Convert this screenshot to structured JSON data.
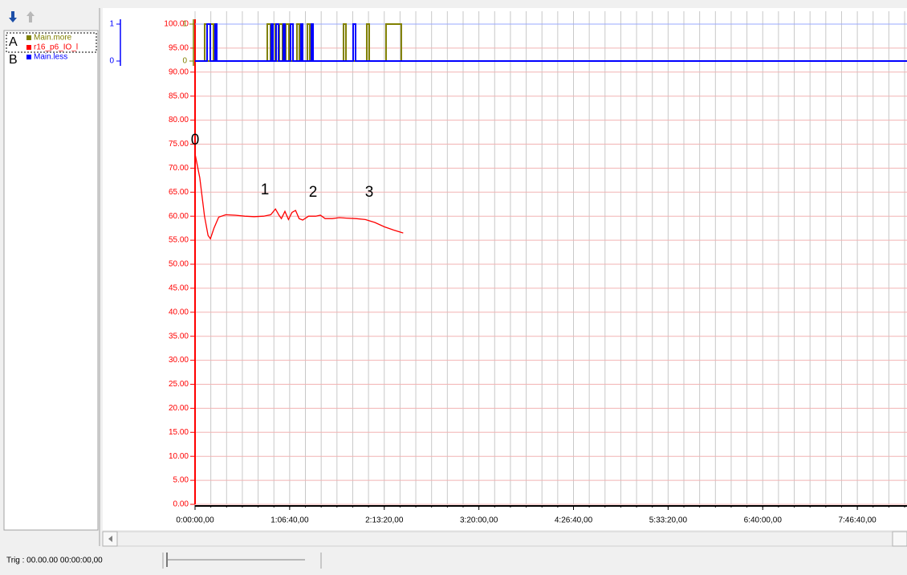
{
  "chart_data": {
    "type": "line",
    "series": [
      {
        "name": "Main.more",
        "color": "#808000",
        "axis": "y2",
        "x": [
          0,
          407,
          509,
          645,
          780,
          3054,
          3189,
          3291,
          3393,
          3563,
          3698,
          3834,
          3970,
          4309,
          4411,
          4750,
          4852,
          6277,
          6379,
          7261,
          7363,
          8075,
          8720
        ],
        "values": [
          0,
          1,
          0,
          1,
          0,
          1,
          0,
          1,
          0,
          1,
          0,
          1,
          0,
          1,
          0,
          1,
          0,
          1,
          0,
          1,
          0,
          1,
          0
        ]
      },
      {
        "name": "r16_p6_IO_l",
        "color": "#ff0000",
        "x": [
          0,
          200,
          400,
          550,
          650,
          800,
          1000,
          1300,
          1700,
          2100,
          2500,
          2900,
          3200,
          3400,
          3550,
          3650,
          3800,
          3950,
          4100,
          4250,
          4400,
          4550,
          4800,
          5100,
          5300,
          5500,
          5800,
          6100,
          6400,
          6800,
          7200,
          7600,
          8000,
          8400,
          8800
        ],
        "values": [
          73,
          68,
          60,
          56,
          55.3,
          57.5,
          59.8,
          60.3,
          60.2,
          60,
          59.9,
          60,
          60.3,
          61.5,
          60.2,
          59.5,
          61,
          59.3,
          60.8,
          61.2,
          59.5,
          59.2,
          60,
          60,
          60.2,
          59.5,
          59.5,
          59.7,
          59.6,
          59.5,
          59.3,
          58.7,
          57.8,
          57.1,
          56.5
        ]
      },
      {
        "name": "Main.less",
        "color": "#0000ff",
        "axis": "y2",
        "x": [
          0,
          509,
          645,
          848,
          916,
          3223,
          3291,
          3427,
          3529,
          3732,
          3800,
          4038,
          4140,
          4479,
          4547,
          4920,
          4988,
          6684,
          6786,
          30100
        ],
        "values": [
          0,
          1,
          0,
          1,
          0,
          1,
          0,
          1,
          0,
          1,
          0,
          1,
          0,
          1,
          0,
          1,
          0,
          1,
          0,
          0
        ]
      }
    ],
    "xlim": [
      0,
      30100
    ],
    "xticks": [
      {
        "value": 0,
        "label": "0:00:00,00"
      },
      {
        "value": 4000,
        "label": "1:06:40,00"
      },
      {
        "value": 8000,
        "label": "2:13:20,00"
      },
      {
        "value": 12000,
        "label": "3:20:00,00"
      },
      {
        "value": 16000,
        "label": "4:26:40,00"
      },
      {
        "value": 20000,
        "label": "5:33:20,00"
      },
      {
        "value": 24000,
        "label": "6:40:00,00"
      },
      {
        "value": 28000,
        "label": "7:46:40,00"
      }
    ],
    "ylim": [
      0,
      100
    ],
    "yticks": [
      {
        "value": 0,
        "label": "0.00"
      },
      {
        "value": 5,
        "label": "5.00"
      },
      {
        "value": 10,
        "label": "10.00"
      },
      {
        "value": 15,
        "label": "15.00"
      },
      {
        "value": 20,
        "label": "20.00"
      },
      {
        "value": 25,
        "label": "25.00"
      },
      {
        "value": 30,
        "label": "30.00"
      },
      {
        "value": 35,
        "label": "35.00"
      },
      {
        "value": 40,
        "label": "40.00"
      },
      {
        "value": 45,
        "label": "45.00"
      },
      {
        "value": 50,
        "label": "50.00"
      },
      {
        "value": 55,
        "label": "55.00"
      },
      {
        "value": 60,
        "label": "60.00"
      },
      {
        "value": 65,
        "label": "65.00"
      },
      {
        "value": 70,
        "label": "70.00"
      },
      {
        "value": 75,
        "label": "75.00"
      },
      {
        "value": 80,
        "label": "80.00"
      },
      {
        "value": 85,
        "label": "85.00"
      },
      {
        "value": 90,
        "label": "90.00"
      },
      {
        "value": 95,
        "label": "95.00"
      },
      {
        "value": 100,
        "label": "100.00"
      }
    ],
    "y2lim": [
      -12,
      1
    ],
    "y2ticks": [
      0,
      1
    ],
    "grid": true,
    "x_minor_per_major": 6,
    "annotations": [
      "0",
      "1",
      "2",
      "3"
    ]
  },
  "legend_panel": {
    "markers": [
      "A",
      "B"
    ]
  },
  "status": "Trig : 00.00.00 00:00:00,00"
}
